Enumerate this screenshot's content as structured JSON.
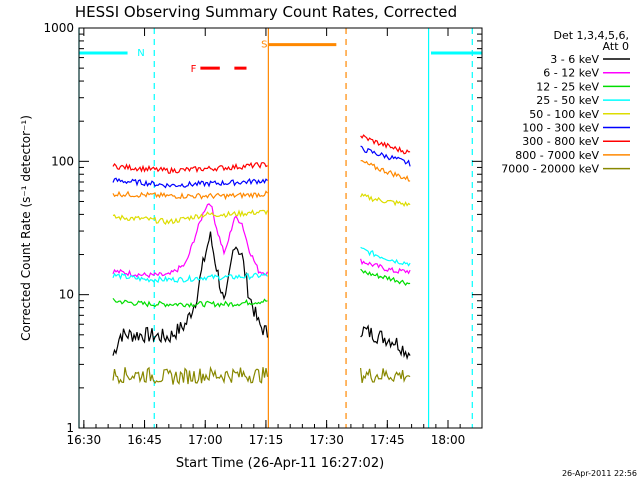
{
  "chart_data": {
    "type": "line",
    "title": "HESSI Observing Summary Count Rates, Corrected",
    "xlabel": "Start Time (26-Apr-11 16:27:02)",
    "ylabel": "Corrected Count Rate (s⁻¹ detector⁻¹)",
    "ylog": true,
    "ylim": [
      1,
      1000
    ],
    "xlim_minutes": [
      16.48,
      18.14
    ],
    "x_ticks": [
      {
        "v": 16.5,
        "label": "16:30"
      },
      {
        "v": 16.75,
        "label": "16:45"
      },
      {
        "v": 17.0,
        "label": "17:00"
      },
      {
        "v": 17.25,
        "label": "17:15"
      },
      {
        "v": 17.5,
        "label": "17:30"
      },
      {
        "v": 17.75,
        "label": "17:45"
      },
      {
        "v": 18.0,
        "label": "18:00"
      }
    ],
    "y_ticks": [
      {
        "v": 1,
        "label": "1"
      },
      {
        "v": 10,
        "label": "10"
      },
      {
        "v": 100,
        "label": "100"
      },
      {
        "v": 1000,
        "label": "1000"
      }
    ],
    "legend": {
      "header": [
        "Det 1,3,4,5,6,",
        "Att 0"
      ],
      "placement": "right"
    },
    "series": [
      {
        "name": "3 - 6 keV",
        "color": "#000000",
        "seg1": [
          [
            16.62,
            3.5
          ],
          [
            16.65,
            5.0
          ],
          [
            16.75,
            5.0
          ],
          [
            16.85,
            4.8
          ],
          [
            16.92,
            6.0
          ],
          [
            16.96,
            9.0
          ],
          [
            17.0,
            20
          ],
          [
            17.02,
            28
          ],
          [
            17.05,
            15
          ],
          [
            17.08,
            8
          ],
          [
            17.12,
            25
          ],
          [
            17.15,
            20
          ],
          [
            17.18,
            10
          ],
          [
            17.22,
            6
          ],
          [
            17.26,
            5
          ]
        ],
        "seg2": [
          [
            17.64,
            5.5
          ],
          [
            17.7,
            5.0
          ],
          [
            17.78,
            4.5
          ],
          [
            17.85,
            3.5
          ]
        ]
      },
      {
        "name": "6 - 12 keV",
        "color": "#ff00ff",
        "seg1": [
          [
            16.62,
            15
          ],
          [
            16.75,
            14
          ],
          [
            16.85,
            14
          ],
          [
            16.92,
            17
          ],
          [
            16.96,
            28
          ],
          [
            17.0,
            45
          ],
          [
            17.02,
            50
          ],
          [
            17.05,
            30
          ],
          [
            17.08,
            20
          ],
          [
            17.12,
            38
          ],
          [
            17.15,
            35
          ],
          [
            17.18,
            22
          ],
          [
            17.22,
            15
          ],
          [
            17.26,
            14.5
          ]
        ],
        "seg2": [
          [
            17.64,
            18
          ],
          [
            17.7,
            16.5
          ],
          [
            17.78,
            15
          ],
          [
            17.85,
            15
          ]
        ]
      },
      {
        "name": "12 - 25 keV",
        "color": "#00dd00",
        "seg1": [
          [
            16.62,
            9
          ],
          [
            16.75,
            8.5
          ],
          [
            16.9,
            8.5
          ],
          [
            17.0,
            8.5
          ],
          [
            17.1,
            8.5
          ],
          [
            17.26,
            9
          ]
        ],
        "seg2": [
          [
            17.64,
            15
          ],
          [
            17.7,
            14
          ],
          [
            17.78,
            13
          ],
          [
            17.85,
            12
          ]
        ]
      },
      {
        "name": "25 - 50 keV",
        "color": "#00ffff",
        "seg1": [
          [
            16.62,
            14
          ],
          [
            16.75,
            13
          ],
          [
            16.9,
            13
          ],
          [
            17.0,
            13.5
          ],
          [
            17.1,
            13.5
          ],
          [
            17.26,
            14
          ]
        ],
        "seg2": [
          [
            17.64,
            22
          ],
          [
            17.7,
            20
          ],
          [
            17.78,
            18
          ],
          [
            17.85,
            17
          ]
        ]
      },
      {
        "name": "50 - 100 keV",
        "color": "#dddd00",
        "seg1": [
          [
            16.62,
            38
          ],
          [
            16.75,
            37
          ],
          [
            16.85,
            35
          ],
          [
            17.0,
            40
          ],
          [
            17.1,
            40
          ],
          [
            17.26,
            42
          ]
        ],
        "seg2": [
          [
            17.64,
            55
          ],
          [
            17.7,
            52
          ],
          [
            17.78,
            49
          ],
          [
            17.85,
            47
          ]
        ]
      },
      {
        "name": "100 - 300 keV",
        "color": "#0000ff",
        "seg1": [
          [
            16.62,
            72
          ],
          [
            16.75,
            69
          ],
          [
            16.85,
            66
          ],
          [
            17.0,
            68
          ],
          [
            17.1,
            69
          ],
          [
            17.26,
            72
          ]
        ],
        "seg2": [
          [
            17.64,
            125
          ],
          [
            17.7,
            115
          ],
          [
            17.78,
            105
          ],
          [
            17.85,
            95
          ]
        ]
      },
      {
        "name": "300 - 800 keV",
        "color": "#ff0000",
        "seg1": [
          [
            16.62,
            92
          ],
          [
            16.75,
            88
          ],
          [
            16.85,
            85
          ],
          [
            17.0,
            88
          ],
          [
            17.1,
            90
          ],
          [
            17.26,
            95
          ]
        ],
        "seg2": [
          [
            17.64,
            155
          ],
          [
            17.7,
            140
          ],
          [
            17.78,
            125
          ],
          [
            17.85,
            115
          ]
        ]
      },
      {
        "name": "800 - 7000 keV",
        "color": "#ff8800",
        "seg1": [
          [
            16.62,
            57
          ],
          [
            16.75,
            56
          ],
          [
            16.85,
            55
          ],
          [
            17.0,
            55
          ],
          [
            17.1,
            55
          ],
          [
            17.26,
            57
          ]
        ],
        "seg2": [
          [
            17.64,
            100
          ],
          [
            17.7,
            90
          ],
          [
            17.78,
            80
          ],
          [
            17.85,
            72
          ]
        ]
      },
      {
        "name": "7000 - 20000 keV",
        "color": "#888800",
        "seg1": [
          [
            16.62,
            2.5
          ],
          [
            16.75,
            2.5
          ],
          [
            16.85,
            2.4
          ],
          [
            17.0,
            2.5
          ],
          [
            17.1,
            2.5
          ],
          [
            17.26,
            2.5
          ]
        ],
        "seg2": [
          [
            17.64,
            2.5
          ],
          [
            17.7,
            2.5
          ],
          [
            17.78,
            2.5
          ],
          [
            17.85,
            2.5
          ]
        ]
      }
    ],
    "annotations": {
      "night": {
        "label": "N",
        "color": "#00ffff",
        "bars": [
          [
            16.48,
            16.68
          ],
          [
            17.93,
            18.14
          ]
        ],
        "level": 650,
        "dashed_at": [
          16.79,
          18.1
        ],
        "solid_at": [
          16.48,
          17.92
        ]
      },
      "saa": {
        "label": "S",
        "color": "#ff8800",
        "bars": [
          [
            17.26,
            17.54
          ]
        ],
        "level": 750,
        "dashed_at": [
          17.58
        ],
        "solid_at": [
          17.26
        ]
      },
      "flare": {
        "label": "F",
        "color": "#ff0000",
        "bars": [
          [
            16.98,
            17.06
          ],
          [
            17.12,
            17.17
          ]
        ],
        "level": 500
      }
    },
    "footer_date": "26-Apr-2011 22:56"
  }
}
